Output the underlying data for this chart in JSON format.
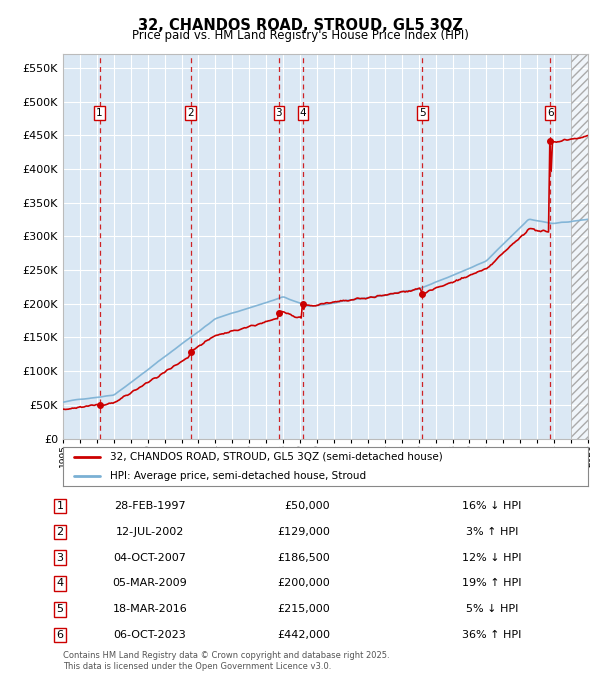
{
  "title": "32, CHANDOS ROAD, STROUD, GL5 3QZ",
  "subtitle": "Price paid vs. HM Land Registry's House Price Index (HPI)",
  "ylim": [
    0,
    570000
  ],
  "yticks": [
    0,
    50000,
    100000,
    150000,
    200000,
    250000,
    300000,
    350000,
    400000,
    450000,
    500000,
    550000
  ],
  "xlim_start": 1995.0,
  "xlim_end": 2026.0,
  "background_color": "#dbe8f4",
  "hatch_region_start": 2025.0,
  "transactions": [
    {
      "num": 1,
      "year": 1997.16,
      "price": 50000
    },
    {
      "num": 2,
      "year": 2002.53,
      "price": 129000
    },
    {
      "num": 3,
      "year": 2007.75,
      "price": 186500
    },
    {
      "num": 4,
      "year": 2009.17,
      "price": 200000
    },
    {
      "num": 5,
      "year": 2016.21,
      "price": 215000
    },
    {
      "num": 6,
      "year": 2023.76,
      "price": 442000
    }
  ],
  "legend_property_label": "32, CHANDOS ROAD, STROUD, GL5 3QZ (semi-detached house)",
  "legend_hpi_label": "HPI: Average price, semi-detached house, Stroud",
  "footer": "Contains HM Land Registry data © Crown copyright and database right 2025.\nThis data is licensed under the Open Government Licence v3.0.",
  "property_color": "#cc0000",
  "hpi_color": "#7ab0d4",
  "dashed_vline_color": "#cc0000",
  "table_rows": [
    [
      "1",
      "28-FEB-1997",
      "£50,000",
      "16% ↓ HPI"
    ],
    [
      "2",
      "12-JUL-2002",
      "£129,000",
      "3% ↑ HPI"
    ],
    [
      "3",
      "04-OCT-2007",
      "£186,500",
      "12% ↓ HPI"
    ],
    [
      "4",
      "05-MAR-2009",
      "£200,000",
      "19% ↑ HPI"
    ],
    [
      "5",
      "18-MAR-2016",
      "£215,000",
      "5% ↓ HPI"
    ],
    [
      "6",
      "06-OCT-2023",
      "£442,000",
      "36% ↑ HPI"
    ]
  ]
}
